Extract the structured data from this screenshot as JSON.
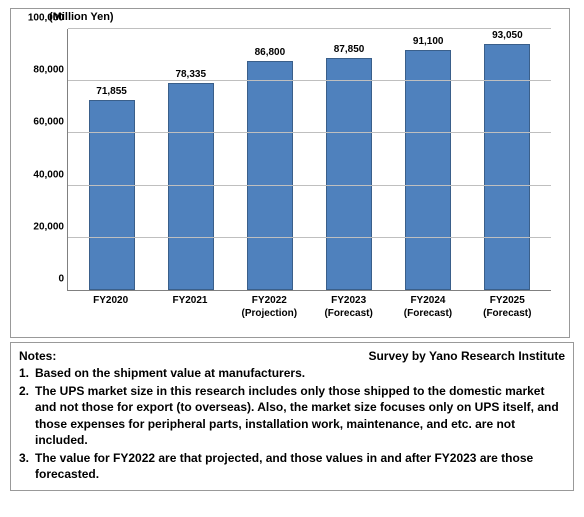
{
  "chart": {
    "type": "bar",
    "y_title": "(Million Yen)",
    "bar_color": "#4f81bd",
    "bar_border_color": "#3a5f8a",
    "grid_color": "#bfbfbf",
    "axis_color": "#808080",
    "bar_width_ratio": 0.62,
    "ylim": [
      0,
      100000
    ],
    "ytick_step": 20000,
    "yticks": [
      {
        "value": 0,
        "label": "0"
      },
      {
        "value": 20000,
        "label": "20,000"
      },
      {
        "value": 40000,
        "label": "40,000"
      },
      {
        "value": 60000,
        "label": "60,000"
      },
      {
        "value": 80000,
        "label": "80,000"
      },
      {
        "value": 100000,
        "label": "100,000"
      }
    ],
    "label_fontsize": 10,
    "label_fontweight": "bold",
    "data": [
      {
        "xlabel_line1": "FY2020",
        "xlabel_line2": "",
        "value": 71855,
        "value_label": "71,855"
      },
      {
        "xlabel_line1": "FY2021",
        "xlabel_line2": "",
        "value": 78335,
        "value_label": "78,335"
      },
      {
        "xlabel_line1": "FY2022",
        "xlabel_line2": "(Projection)",
        "value": 86800,
        "value_label": "86,800"
      },
      {
        "xlabel_line1": "FY2023",
        "xlabel_line2": "(Forecast)",
        "value": 87850,
        "value_label": "87,850"
      },
      {
        "xlabel_line1": "FY2024",
        "xlabel_line2": "(Forecast)",
        "value": 91100,
        "value_label": "91,100"
      },
      {
        "xlabel_line1": "FY2025",
        "xlabel_line2": "(Forecast)",
        "value": 93050,
        "value_label": "93,050"
      }
    ]
  },
  "notes": {
    "title": "Notes:",
    "survey_by": "Survey by Yano Research Institute",
    "items": [
      {
        "num": "1.",
        "text": "Based on the shipment value at manufacturers."
      },
      {
        "num": "2.",
        "text": "The UPS market size in this research includes only those shipped to the domestic market and not those for export (to overseas). Also, the market size focuses only on UPS itself, and those expenses for peripheral parts, installation work, maintenance, and etc. are not included."
      },
      {
        "num": "3.",
        "text": "The value for FY2022 are that projected, and those values in and after FY2023 are those forecasted."
      }
    ],
    "font_size": 12,
    "font_weight": "bold",
    "text_color": "#000000"
  }
}
